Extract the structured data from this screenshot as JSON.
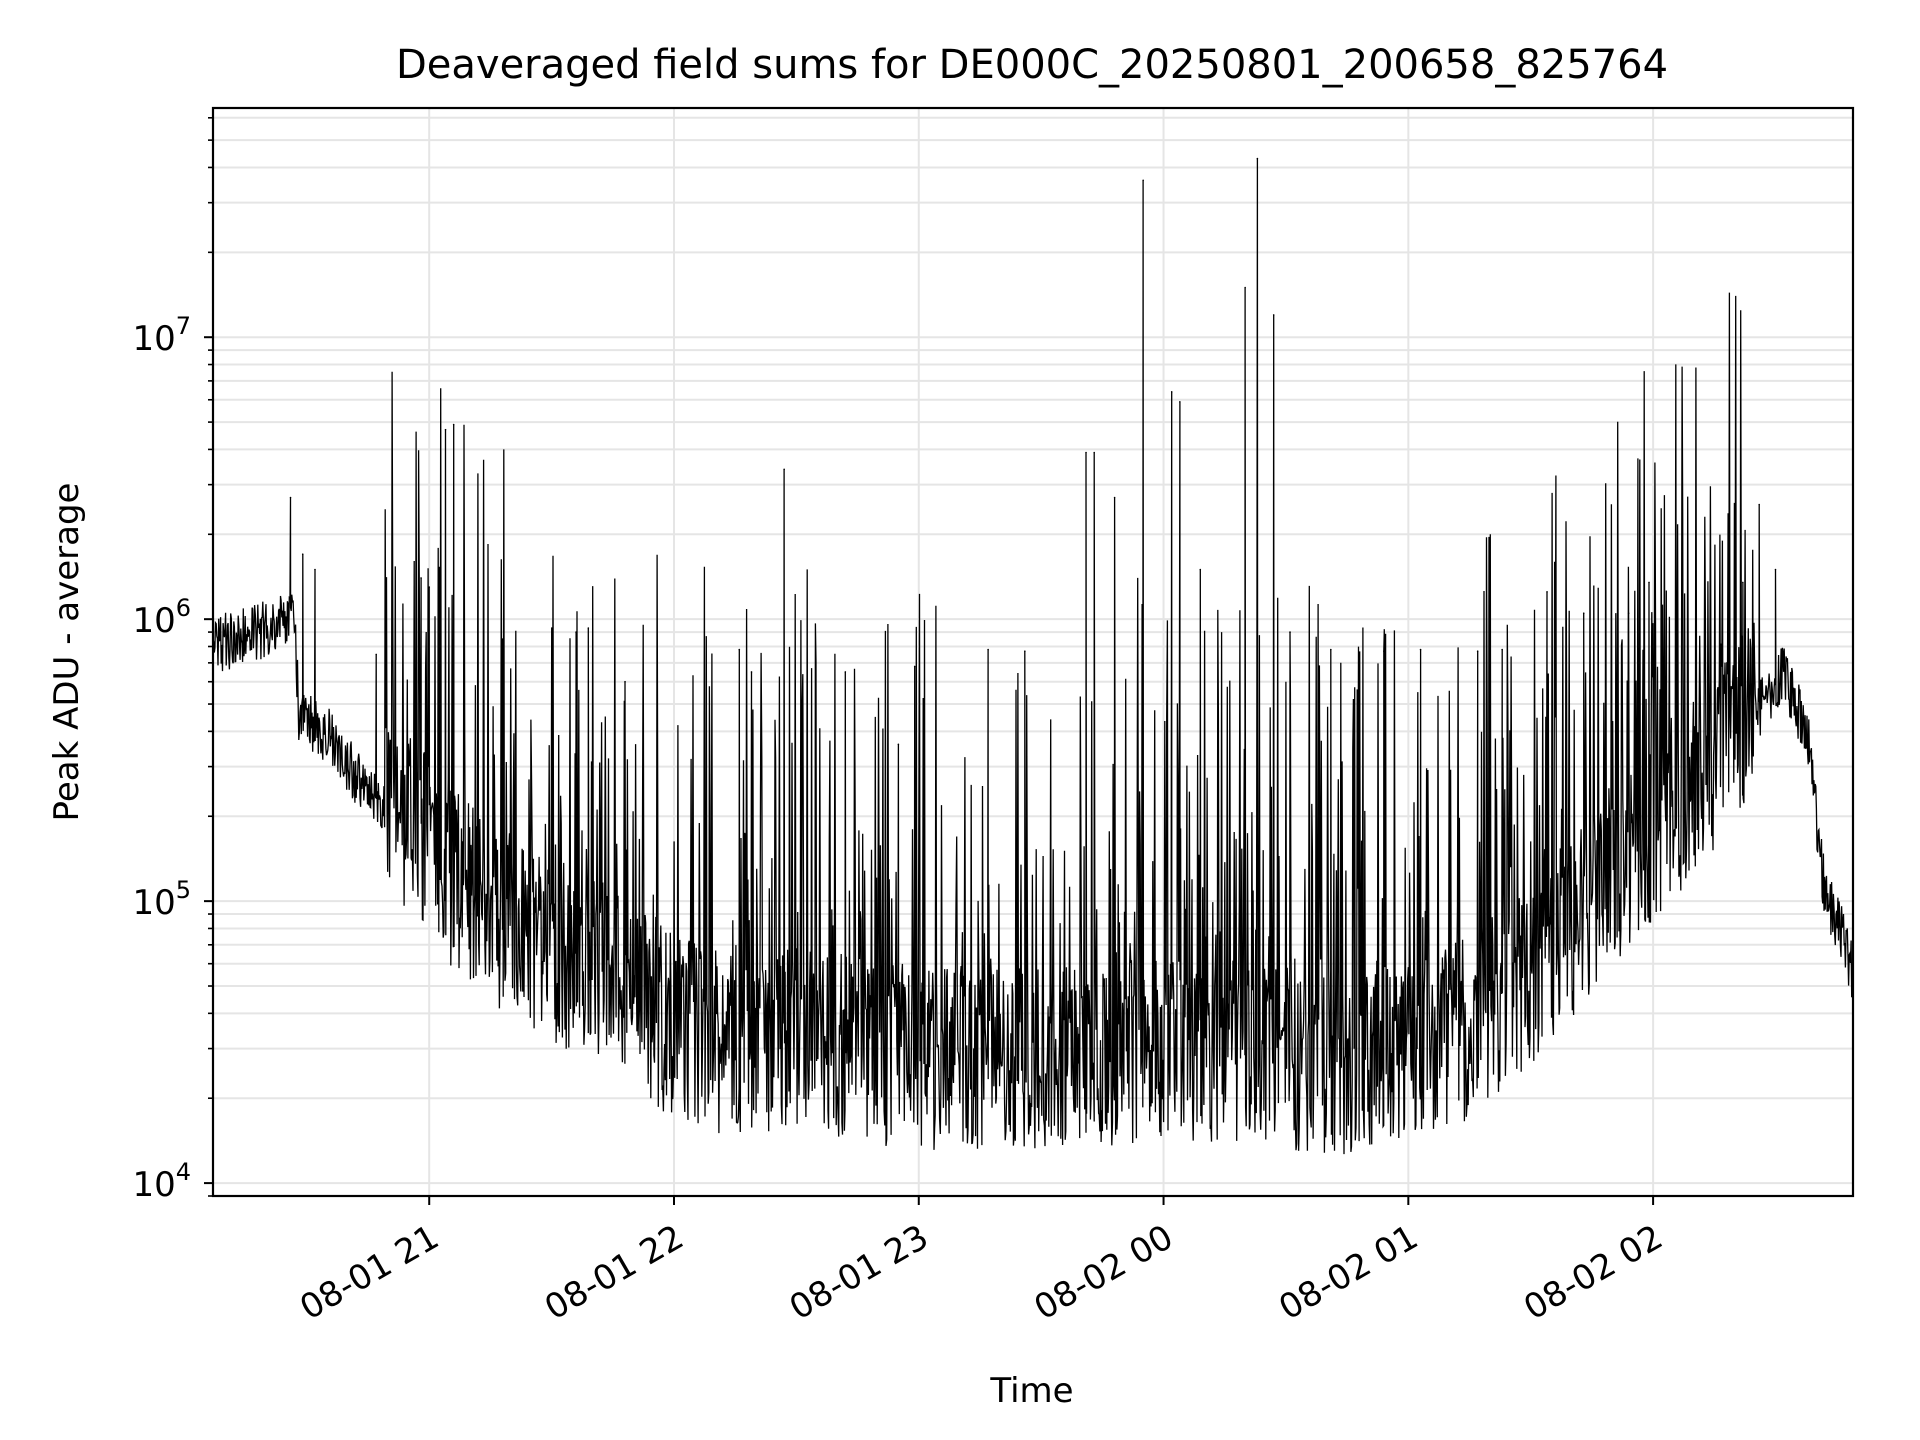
{
  "chart_data": {
    "type": "line",
    "title": "Deaveraged field sums for DE000C_20250801_200658_825764",
    "xlabel": "Time",
    "ylabel": "Peak ADU - average",
    "xlim": [
      "2025-08-01 20:07",
      "2025-08-02 02:49"
    ],
    "ylim": [
      9000,
      65000000
    ],
    "yscale": "log",
    "grid": true,
    "legend": "none",
    "x_ticks": [
      {
        "value": "2025-08-01 21:00",
        "label": "08-01 21"
      },
      {
        "value": "2025-08-01 22:00",
        "label": "08-01 22"
      },
      {
        "value": "2025-08-01 23:00",
        "label": "08-01 23"
      },
      {
        "value": "2025-08-02 00:00",
        "label": "08-02 00"
      },
      {
        "value": "2025-08-02 01:00",
        "label": "08-02 01"
      },
      {
        "value": "2025-08-02 02:00",
        "label": "08-02 02"
      }
    ],
    "y_ticks": [
      {
        "value": 10000,
        "base": "10",
        "exp": "4"
      },
      {
        "value": 100000,
        "base": "10",
        "exp": "5"
      },
      {
        "value": 1000000,
        "base": "10",
        "exp": "6"
      },
      {
        "value": 10000000,
        "base": "10",
        "exp": "7"
      }
    ],
    "colors": {
      "line": "#000000",
      "grid": "#e5e5e5",
      "axes": "#000000"
    },
    "baseline": {
      "x": [
        "2025-08-01 20:07",
        "2025-08-01 20:20",
        "2025-08-01 20:27",
        "2025-08-01 20:28",
        "2025-08-01 20:35",
        "2025-08-01 20:45",
        "2025-08-01 20:55",
        "2025-08-01 21:05",
        "2025-08-01 21:15",
        "2025-08-01 21:25",
        "2025-08-01 21:35",
        "2025-08-01 21:45",
        "2025-08-01 21:55",
        "2025-08-01 22:10",
        "2025-08-01 22:30",
        "2025-08-01 23:00",
        "2025-08-01 23:30",
        "2025-08-02 00:00",
        "2025-08-02 00:30",
        "2025-08-02 00:50",
        "2025-08-02 01:05",
        "2025-08-02 01:15",
        "2025-08-02 01:25",
        "2025-08-02 01:35",
        "2025-08-02 01:45",
        "2025-08-02 01:55",
        "2025-08-02 02:05",
        "2025-08-02 02:15",
        "2025-08-02 02:25",
        "2025-08-02 02:32",
        "2025-08-02 02:38",
        "2025-08-02 02:42",
        "2025-08-02 02:46",
        "2025-08-02 02:49"
      ],
      "y": [
        750000,
        850000,
        950000,
        420000,
        360000,
        220000,
        150000,
        100000,
        75000,
        55000,
        50000,
        45000,
        32000,
        24000,
        26000,
        22000,
        22000,
        23000,
        22000,
        21000,
        24000,
        28000,
        38000,
        52000,
        80000,
        120000,
        170000,
        260000,
        420000,
        600000,
        350000,
        100000,
        75000,
        50000
      ]
    },
    "spikes": {
      "x": [
        "2025-08-01 20:26",
        "2025-08-01 20:29",
        "2025-08-01 20:32",
        "2025-08-01 20:47",
        "2025-08-01 20:58",
        "2025-08-01 21:00",
        "2025-08-01 21:04",
        "2025-08-01 21:06",
        "2025-08-01 21:18",
        "2025-08-01 21:36",
        "2025-08-01 21:39",
        "2025-08-01 21:48",
        "2025-08-01 22:16",
        "2025-08-01 22:19",
        "2025-08-01 22:27",
        "2025-08-01 22:42",
        "2025-08-01 22:55",
        "2025-08-01 22:59",
        "2025-08-01 23:17",
        "2025-08-01 23:26",
        "2025-08-01 23:41",
        "2025-08-01 23:43",
        "2025-08-01 23:48",
        "2025-08-01 23:55",
        "2025-08-02 00:02",
        "2025-08-02 00:04",
        "2025-08-02 00:09",
        "2025-08-02 00:20",
        "2025-08-02 00:23",
        "2025-08-02 00:27",
        "2025-08-02 00:31",
        "2025-08-02 00:41",
        "2025-08-02 00:54",
        "2025-08-02 01:03",
        "2025-08-02 01:17",
        "2025-08-02 01:23",
        "2025-08-02 01:34",
        "2025-08-02 01:43",
        "2025-08-02 01:54",
        "2025-08-02 01:59",
        "2025-08-02 02:22",
        "2025-08-02 02:26",
        "2025-08-02 02:30"
      ],
      "y": [
        2700000,
        1700000,
        1500000,
        750000,
        1400000,
        1300000,
        4700000,
        4900000,
        850000,
        900000,
        930000,
        600000,
        780000,
        650000,
        3400000,
        650000,
        360000,
        680000,
        780000,
        770000,
        3900000,
        3900000,
        2700000,
        36000000,
        6400000,
        5900000,
        1500000,
        15000000,
        43000000,
        12000000,
        900000,
        780000,
        770000,
        780000,
        770000,
        780000,
        1250000,
        1050000,
        1050000,
        1350000,
        1350000,
        2550000,
        1500000
      ]
    }
  }
}
